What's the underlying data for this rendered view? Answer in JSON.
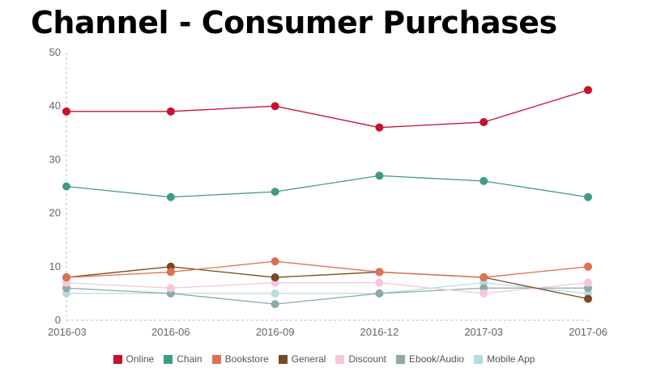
{
  "chart_data": {
    "type": "line",
    "title": "Channel - Consumer Purchases",
    "xlabel": "",
    "ylabel": "",
    "x": [
      "2016-03",
      "2016-06",
      "2016-09",
      "2016-12",
      "2017-03",
      "2017-06"
    ],
    "ylim": [
      0,
      50
    ],
    "yticks": [
      "0",
      "10",
      "20",
      "30",
      "40",
      "50"
    ],
    "grid": false,
    "legend_position": "bottom",
    "series": [
      {
        "name": "Online",
        "color": "#c8102e",
        "values": [
          39,
          39,
          40,
          36,
          37,
          43
        ]
      },
      {
        "name": "Chain",
        "color": "#3f9a88",
        "values": [
          25,
          23,
          24,
          27,
          26,
          23
        ]
      },
      {
        "name": "Bookstore",
        "color": "#e07050",
        "values": [
          8,
          9,
          11,
          9,
          8,
          10
        ]
      },
      {
        "name": "General",
        "color": "#7a4a25",
        "values": [
          8,
          10,
          8,
          9,
          8,
          4
        ]
      },
      {
        "name": "Discount",
        "color": "#f5c6de",
        "values": [
          7,
          6,
          7,
          7,
          5,
          7
        ]
      },
      {
        "name": "Ebook/Audio",
        "color": "#8fa8aa",
        "values": [
          6,
          5,
          3,
          5,
          6,
          6
        ]
      },
      {
        "name": "Mobile App",
        "color": "#b7dcdc",
        "values": [
          5,
          5,
          5,
          5,
          7,
          5
        ]
      }
    ]
  }
}
